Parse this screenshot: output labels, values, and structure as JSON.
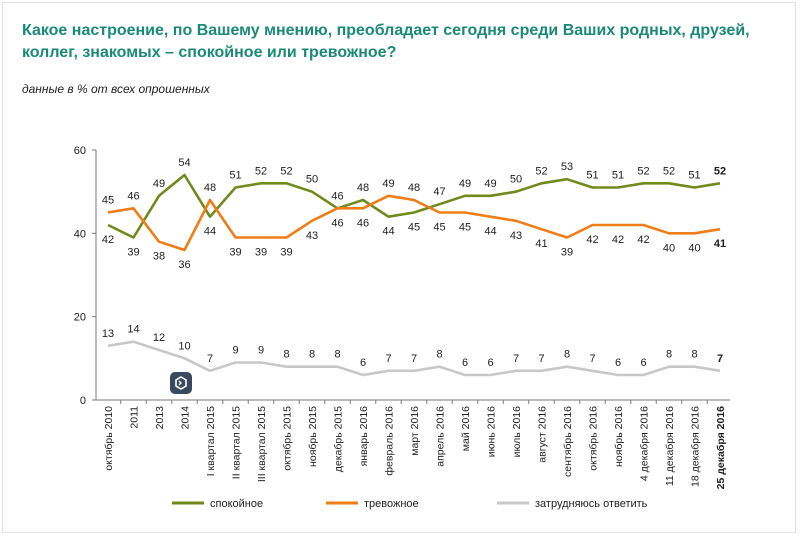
{
  "header": {
    "title": "Какое настроение, по Вашему мнению, преобладает сегодня среди Ваших родных, друзей, коллег, знакомых – спокойное или тревожное?",
    "subtitle": "данные в % от всех опрошенных"
  },
  "overlay": {
    "icon": "logo-badge-icon"
  },
  "chart_data": {
    "type": "line",
    "ylim": [
      0,
      60
    ],
    "yticks": [
      0,
      20,
      40,
      60
    ],
    "categories": [
      "октябрь 2010",
      "2011",
      "2013",
      "2014",
      "I квартал 2015",
      "II квартал 2015",
      "III квартал 2015",
      "октябрь 2015",
      "ноябрь 2015",
      "декабрь 2015",
      "январь 2016",
      "февраль 2016",
      "март 2016",
      "апрель 2016",
      "май 2016",
      "июнь 2016",
      "июль 2016",
      "август 2016",
      "сентябрь 2016",
      "октябрь 2016",
      "ноябрь 2016",
      "4 декабря 2016",
      "11 декабря 2016",
      "18 декабря 2016",
      "25 декабря 2016"
    ],
    "bold_last": true,
    "series": [
      {
        "name": "спокойное",
        "color": "#708a1c",
        "values": [
          42,
          39,
          49,
          54,
          44,
          51,
          52,
          52,
          50,
          46,
          48,
          44,
          45,
          47,
          49,
          49,
          50,
          52,
          53,
          51,
          51,
          52,
          52,
          51,
          52
        ],
        "label_pos": [
          "below",
          "below",
          "above",
          "above",
          "below",
          "above",
          "above",
          "above",
          "above",
          "above",
          "above",
          "below",
          "below",
          "above",
          "above",
          "above",
          "above",
          "above",
          "above",
          "above",
          "above",
          "above",
          "above",
          "above",
          "above"
        ]
      },
      {
        "name": "тревожное",
        "color": "#ef7d18",
        "values": [
          45,
          46,
          38,
          36,
          48,
          39,
          39,
          39,
          43,
          46,
          46,
          49,
          48,
          45,
          45,
          44,
          43,
          41,
          39,
          42,
          42,
          42,
          40,
          40,
          41
        ],
        "label_pos": [
          "above",
          "above",
          "below",
          "below",
          "above",
          "below",
          "below",
          "below",
          "below",
          "below",
          "below",
          "above",
          "above",
          "below",
          "below",
          "below",
          "below",
          "below",
          "below",
          "below",
          "below",
          "below",
          "below",
          "below",
          "below"
        ]
      },
      {
        "name": "затрудняюсь ответить",
        "color": "#c8c8c8",
        "values": [
          13,
          14,
          12,
          10,
          7,
          9,
          9,
          8,
          8,
          8,
          6,
          7,
          7,
          8,
          6,
          6,
          7,
          7,
          8,
          7,
          6,
          6,
          8,
          8,
          7
        ],
        "label_pos": [
          "above",
          "above",
          "above",
          "above",
          "above",
          "above",
          "above",
          "above",
          "above",
          "above",
          "above",
          "above",
          "above",
          "above",
          "above",
          "above",
          "above",
          "above",
          "above",
          "above",
          "above",
          "above",
          "above",
          "above",
          "above"
        ]
      }
    ]
  }
}
